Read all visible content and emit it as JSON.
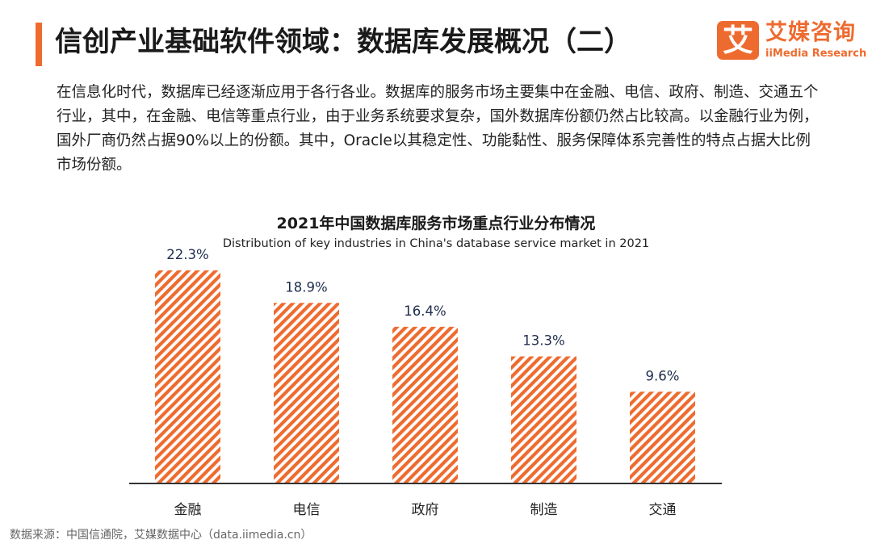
{
  "header": {
    "title": "信创产业基础软件领域：数据库发展概况（二）",
    "logo": {
      "mark": "艾",
      "name_cn": "艾媒咨询",
      "name_en": "iiMedia Research"
    }
  },
  "intro": {
    "text": "在信息化时代，数据库已经逐渐应用于各行各业。数据库的服务市场主要集中在金融、电信、政府、制造、交通五个行业，其中，在金融、电信等重点行业，由于业务系统要求复杂，国外数据库份额仍然占比较高。以金融行业为例，国外厂商仍然占据90%以上的份额。其中，Oracle以其稳定性、功能黏性、服务保障体系完善性的特点占据大比例市场份额。"
  },
  "chart_data": {
    "type": "bar",
    "title": "2021年中国数据库服务市场重点行业分布情况",
    "subtitle": "Distribution of key industries in China's database service market in 2021",
    "categories": [
      "金融",
      "电信",
      "政府",
      "制造",
      "交通"
    ],
    "values": [
      22.3,
      18.9,
      16.4,
      13.3,
      9.6
    ],
    "value_labels": [
      "22.3%",
      "18.9%",
      "16.4%",
      "13.3%",
      "9.6%"
    ],
    "unit": "%",
    "ylim": [
      0,
      22.3
    ],
    "grid": false,
    "legend": "none",
    "colors": {
      "bar": "#ee6b2f",
      "stripe_gap": "#ffffff",
      "axis": "#333333",
      "label": "#1f2d4d"
    }
  },
  "footer": {
    "source": "数据来源：中国信通院，艾媒数据中心（data.iimedia.cn）"
  }
}
